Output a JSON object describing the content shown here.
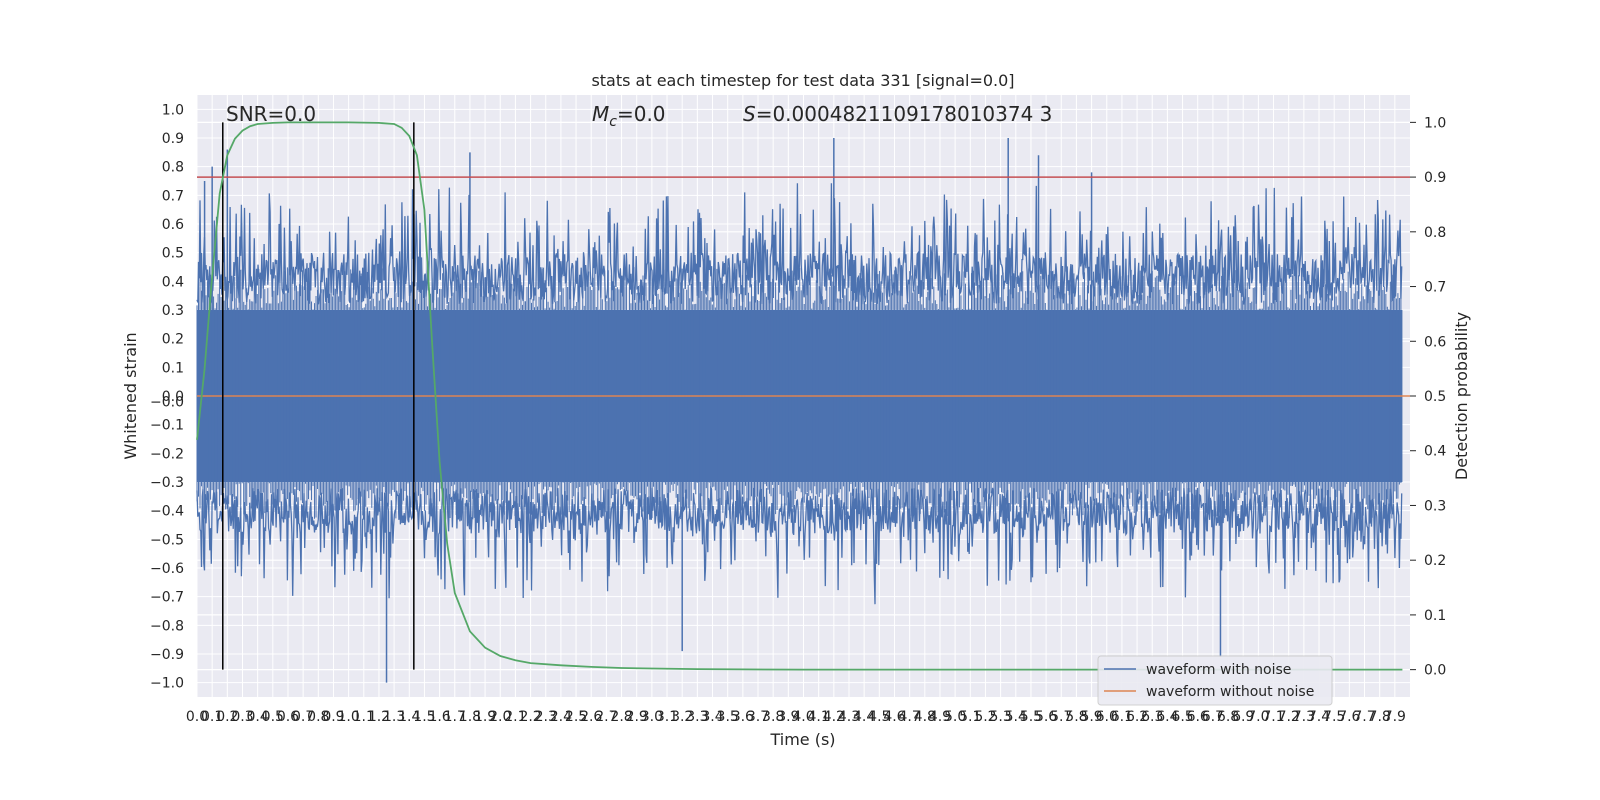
{
  "chart_data": {
    "type": "line",
    "title": "stats at each timestep for test data 331 [signal=0.0]",
    "xlabel": "Time (s)",
    "ylabel": "Whitened strain",
    "ylabel_right": "Detection probability",
    "xlim": [
      0.0,
      8.0
    ],
    "ylim": [
      -1.05,
      1.05
    ],
    "ylim_right": [
      -0.05,
      1.05
    ],
    "grid": true,
    "legend_position": "lower-right",
    "x_ticks": [
      "0.0",
      "0.1",
      "0.2",
      "0.3",
      "0.4",
      "0.5",
      "0.6",
      "0.7",
      "0.8",
      "0.9",
      "1.0",
      "1.1",
      "1.2",
      "1.3",
      "1.4",
      "1.5",
      "1.6",
      "1.7",
      "1.8",
      "1.9",
      "2.0",
      "2.1",
      "2.2",
      "2.3",
      "2.4",
      "2.5",
      "2.6",
      "2.7",
      "2.8",
      "2.9",
      "3.0",
      "3.1",
      "3.2",
      "3.3",
      "3.4",
      "3.5",
      "3.6",
      "3.7",
      "3.8",
      "3.9",
      "4.0",
      "4.1",
      "4.2",
      "4.3",
      "4.4",
      "4.5",
      "4.6",
      "4.7",
      "4.8",
      "4.9",
      "5.0",
      "5.1",
      "5.2",
      "5.3",
      "5.4",
      "5.5",
      "5.6",
      "5.7",
      "5.8",
      "5.9",
      "6.0",
      "6.1",
      "6.2",
      "6.3",
      "6.4",
      "6.5",
      "6.6",
      "6.7",
      "6.8",
      "6.9",
      "7.0",
      "7.1",
      "7.2",
      "7.3",
      "7.4",
      "7.5",
      "7.6",
      "7.7",
      "7.8",
      "7.9"
    ],
    "y_ticks": [
      "1.0",
      "0.9",
      "0.8",
      "0.7",
      "0.6",
      "0.5",
      "0.4",
      "0.3",
      "0.2",
      "0.1",
      "0.0",
      "-0.0",
      "-0.1",
      "-0.2",
      "-0.3",
      "-0.4",
      "-0.5",
      "-0.6",
      "-0.7",
      "-0.8",
      "-0.9",
      "-1.0"
    ],
    "y_ticks_right": [
      "1.0",
      "0.9",
      "0.8",
      "0.7",
      "0.6",
      "0.5",
      "0.4",
      "0.3",
      "0.2",
      "0.1",
      "0.0"
    ],
    "annotations": {
      "snr": "SNR=0.0",
      "mc_symbol": "M",
      "mc_subscript": "c",
      "mc_value": "=0.0",
      "s_symbol": "S",
      "s_value": "=0.0004821109178010374 3"
    },
    "series": [
      {
        "name": "waveform with noise",
        "color": "#4c72b0",
        "axis": "left",
        "description_points": [
          [
            0.05,
            0.75
          ],
          [
            0.1,
            0.8
          ],
          [
            0.2,
            0.86
          ],
          [
            1.8,
            0.85
          ],
          [
            4.2,
            0.9
          ],
          [
            5.35,
            0.9
          ],
          [
            5.55,
            0.84
          ],
          [
            5.9,
            0.78
          ],
          [
            1.25,
            -1.0
          ],
          [
            3.2,
            -0.89
          ],
          [
            6.75,
            -0.91
          ]
        ]
      },
      {
        "name": "waveform without noise",
        "color": "#dd8452",
        "axis": "left",
        "values": [
          0.0
        ]
      },
      {
        "name": "",
        "color": "#55a868",
        "axis": "right",
        "x": [
          0.0,
          0.05,
          0.1,
          0.15,
          0.2,
          0.25,
          0.3,
          0.35,
          0.4,
          0.5,
          0.6,
          0.8,
          1.0,
          1.2,
          1.3,
          1.35,
          1.4,
          1.45,
          1.5,
          1.55,
          1.6,
          1.65,
          1.7,
          1.8,
          1.9,
          2.0,
          2.1,
          2.2,
          2.4,
          2.6,
          2.8,
          3.0,
          3.3,
          3.6,
          4.0,
          5.0,
          6.0,
          7.0,
          7.95
        ],
        "values": [
          0.42,
          0.55,
          0.72,
          0.87,
          0.94,
          0.97,
          0.985,
          0.993,
          0.997,
          0.999,
          1.0,
          1.0,
          1.0,
          0.999,
          0.997,
          0.99,
          0.975,
          0.94,
          0.84,
          0.6,
          0.38,
          0.23,
          0.14,
          0.07,
          0.04,
          0.025,
          0.017,
          0.012,
          0.008,
          0.005,
          0.003,
          0.002,
          0.001,
          0.0005,
          0.0,
          0.0,
          0.0,
          0.0,
          0.0
        ]
      }
    ],
    "threshold": {
      "value": 0.9,
      "axis": "right",
      "color": "#c44e52"
    },
    "vertical_lines": {
      "x": [
        0.17,
        1.43
      ],
      "color": "#000000"
    }
  }
}
